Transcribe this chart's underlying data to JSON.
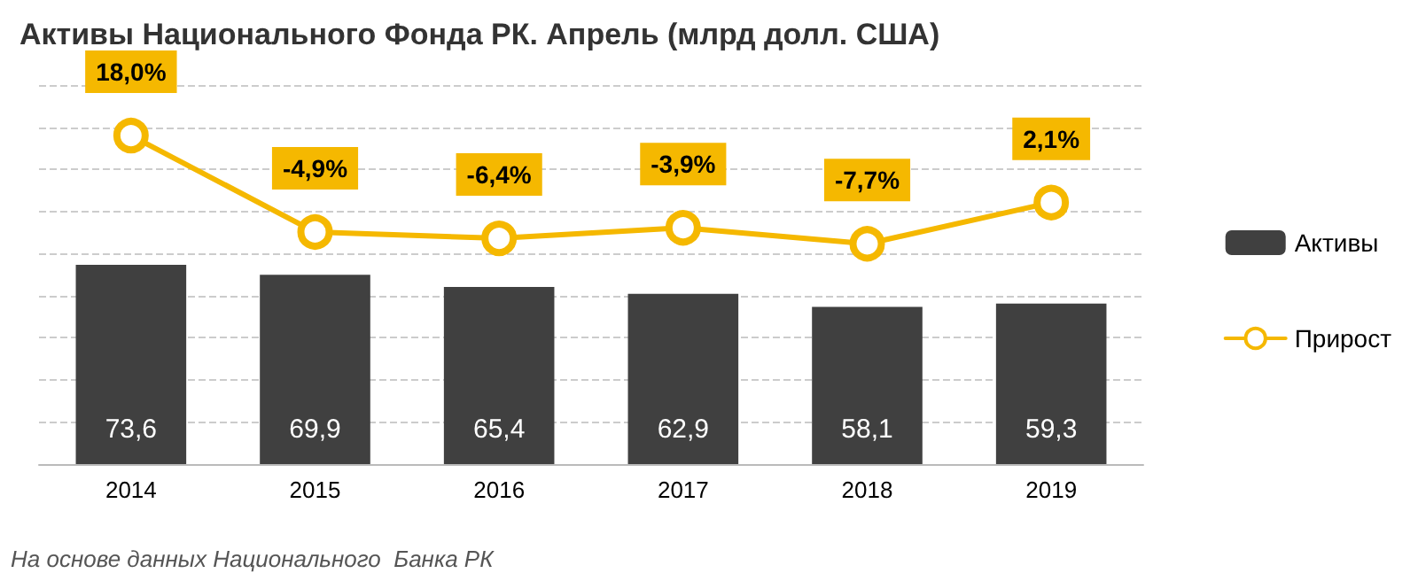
{
  "chart_data": {
    "type": "bar",
    "title": "Активы Национального Фонда РК. Апрель (млрд долл. США)",
    "categories": [
      "2014",
      "2015",
      "2016",
      "2017",
      "2018",
      "2019"
    ],
    "series": [
      {
        "name": "Активы",
        "color": "#404040",
        "values": [
          73.6,
          69.9,
          65.4,
          62.9,
          58.1,
          59.3
        ],
        "value_labels": [
          "73,6",
          "69,9",
          "65,4",
          "62,9",
          "58,1",
          "59,3"
        ]
      },
      {
        "name": "Прирост",
        "type": "line",
        "axis": "y2",
        "color": "#f5b800",
        "values": [
          18.0,
          -4.9,
          -6.4,
          -3.9,
          -7.7,
          2.1
        ],
        "value_labels": [
          "18,0%",
          "-4,9%",
          "-6,4%",
          "-3,9%",
          "-7,7%",
          "2,1%"
        ]
      }
    ],
    "ylim": [
      0,
      140
    ],
    "y2lim": [
      -60,
      30
    ],
    "tick_labels": "x",
    "grid": "y",
    "legend": "right",
    "marker": "circle",
    "line_style": "solid",
    "annotations": [
      "На основе данных Национального  Банка РК"
    ]
  }
}
